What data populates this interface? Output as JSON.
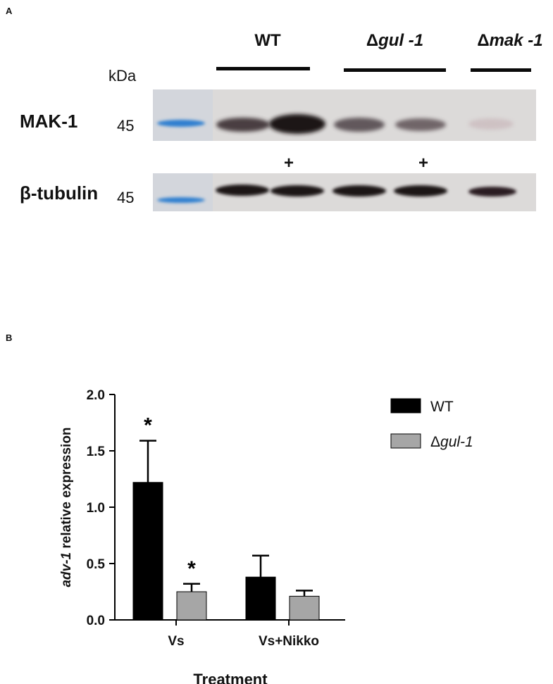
{
  "panel_a": {
    "label": "A",
    "kda_label": "kDa",
    "strains": [
      {
        "prefix": "",
        "name": "WT"
      },
      {
        "prefix": "Δ",
        "name": "gul -1"
      },
      {
        "prefix": "Δ",
        "name": "mak -1"
      }
    ],
    "rows": [
      {
        "label": "MAK-1",
        "marker": "45"
      },
      {
        "label": "β-tubulin",
        "marker": "45"
      }
    ],
    "plus_marks": [
      "+",
      "+"
    ],
    "colors": {
      "ladder_band": "#2f7fd0",
      "blot_background": "#dcdad9",
      "band": "#2a1f22"
    }
  },
  "panel_b": {
    "label": "B",
    "chart_data": {
      "type": "bar",
      "categories": [
        "Vs",
        "Vs+Nikko"
      ],
      "series": [
        {
          "name": "WT",
          "values": [
            1.22,
            0.38
          ],
          "errors": [
            0.37,
            0.19
          ],
          "color": "#000000"
        },
        {
          "name_prefix": "Δ",
          "name": "gul-1",
          "values": [
            0.25,
            0.21
          ],
          "errors": [
            0.07,
            0.05
          ],
          "color": "#a6a6a6"
        }
      ],
      "annotations": [
        {
          "text": "*",
          "category": "Vs",
          "series": "WT"
        },
        {
          "text": "*",
          "category": "Vs",
          "series": "gul-1"
        }
      ],
      "xlabel": "Treatment",
      "ylabel_italic": "adv-1",
      "ylabel_rest": " relative expression",
      "ylim": [
        0,
        2.0
      ],
      "yticks": [
        "0.0",
        "0.5",
        "1.0",
        "1.5",
        "2.0"
      ],
      "ytick_values": [
        0,
        0.5,
        1.0,
        1.5,
        2.0
      ],
      "legend_position": "top-right",
      "grid": false
    }
  }
}
